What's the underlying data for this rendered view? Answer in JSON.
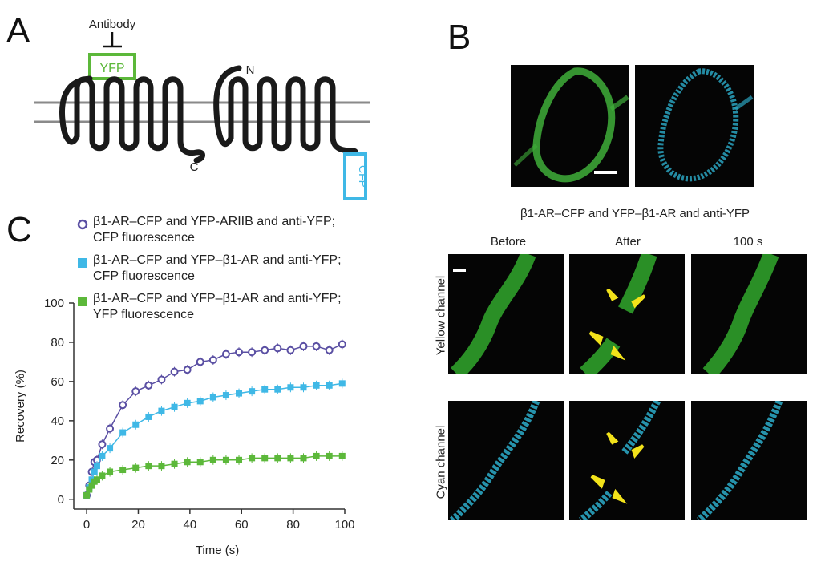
{
  "panels": {
    "a": {
      "letter": "A",
      "antibody": "Antibody",
      "yfp": "YFP",
      "cfp": "CFP",
      "n_term": "N",
      "c_term": "C"
    },
    "b": {
      "letter": "B",
      "condition": "β1-AR–CFP and YFP–β1-AR and anti-YFP",
      "columns": [
        "Before",
        "After",
        "100 s"
      ],
      "rows": [
        "Yellow channel",
        "Cyan channel"
      ]
    },
    "c": {
      "letter": "C"
    }
  },
  "colors": {
    "yfp_green": "#5cb83a",
    "cfp_cyan": "#3fb8e6",
    "purple": "#5a4fa3",
    "arrow_yellow": "#f2e21a"
  },
  "chart_data": {
    "type": "scatter",
    "xlabel": "Time (s)",
    "ylabel": "Recovery (%)",
    "xlim": [
      -5,
      100
    ],
    "ylim": [
      -5,
      100
    ],
    "xticks": [
      0,
      20,
      40,
      60,
      80,
      100
    ],
    "yticks": [
      0,
      20,
      40,
      60,
      80,
      100
    ],
    "series": [
      {
        "name": "β1-AR–CFP and YFP-ARIIB and anti-YFP; CFP fluorescence",
        "color": "#5a4fa3",
        "marker": "open-circle",
        "x": [
          0,
          1,
          2,
          3,
          4,
          6,
          9,
          14,
          19,
          24,
          29,
          34,
          39,
          44,
          49,
          54,
          59,
          64,
          69,
          74,
          79,
          84,
          89,
          94,
          99
        ],
        "y": [
          2,
          7,
          14,
          19,
          20,
          28,
          36,
          48,
          55,
          58,
          61,
          65,
          66,
          70,
          71,
          74,
          75,
          75,
          76,
          77,
          76,
          78,
          78,
          76,
          79
        ]
      },
      {
        "name": "β1-AR–CFP and YFP–β1-AR and anti-YFP; CFP fluorescence",
        "color": "#3fb8e6",
        "marker": "filled-square",
        "x": [
          0,
          1,
          2,
          3,
          4,
          6,
          9,
          14,
          19,
          24,
          29,
          34,
          39,
          44,
          49,
          54,
          59,
          64,
          69,
          74,
          79,
          84,
          89,
          94,
          99
        ],
        "y": [
          2,
          6,
          10,
          14,
          17,
          22,
          26,
          34,
          38,
          42,
          45,
          47,
          49,
          50,
          52,
          53,
          54,
          55,
          56,
          56,
          57,
          57,
          58,
          58,
          59
        ]
      },
      {
        "name": "β1-AR–CFP and YFP–β1-AR and anti-YFP; YFP fluorescence",
        "color": "#5cb83a",
        "marker": "filled-square",
        "x": [
          0,
          1,
          2,
          3,
          4,
          6,
          9,
          14,
          19,
          24,
          29,
          34,
          39,
          44,
          49,
          54,
          59,
          64,
          69,
          74,
          79,
          84,
          89,
          94,
          99
        ],
        "y": [
          2,
          5,
          7,
          9,
          10,
          12,
          14,
          15,
          16,
          17,
          17,
          18,
          19,
          19,
          20,
          20,
          20,
          21,
          21,
          21,
          21,
          21,
          22,
          22,
          22
        ]
      }
    ],
    "legend": [
      {
        "line1": "β1-AR–CFP and YFP-ARIIB and anti-YFP;",
        "line2": "CFP fluorescence"
      },
      {
        "line1": "β1-AR–CFP and YFP–β1-AR and anti-YFP;",
        "line2": "CFP fluorescence"
      },
      {
        "line1": "β1-AR–CFP and YFP–β1-AR and anti-YFP;",
        "line2": "YFP fluorescence"
      }
    ]
  }
}
